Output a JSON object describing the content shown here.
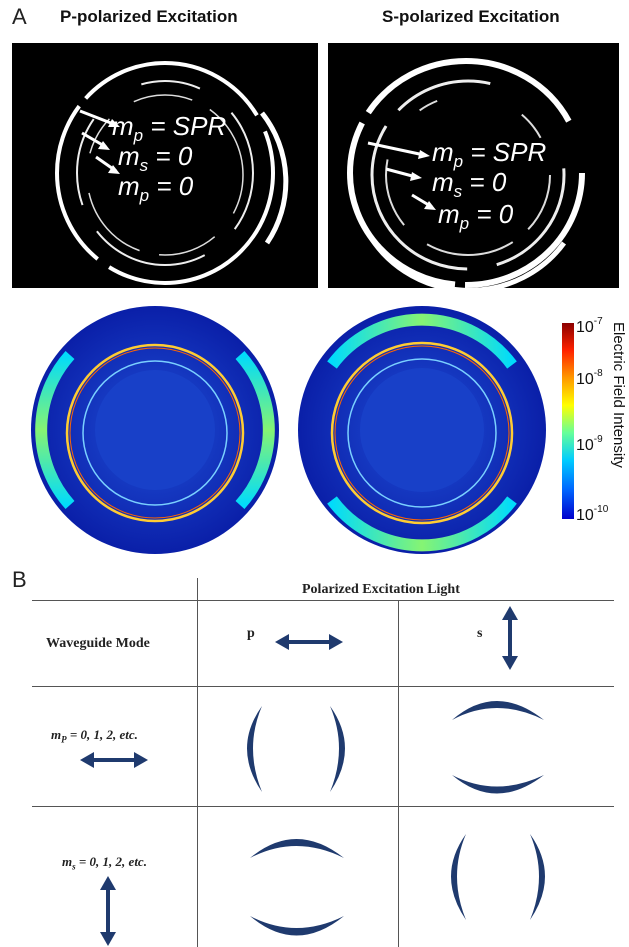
{
  "panel_a": {
    "letter": "A",
    "left_title": "P-polarized Excitation",
    "right_title": "S-polarized Excitation",
    "mode_labels": [
      {
        "symbol": "m",
        "sub": "p",
        "eq": "=",
        "value": "SPR"
      },
      {
        "symbol": "m",
        "sub": "s",
        "eq": "=",
        "value": "0"
      },
      {
        "symbol": "m",
        "sub": "p",
        "eq": "=",
        "value": "0"
      }
    ],
    "colorbar": {
      "title": "Electric Field Intensity",
      "ticks": [
        {
          "base": "10",
          "exp": "-7"
        },
        {
          "base": "10",
          "exp": "-8"
        },
        {
          "base": "10",
          "exp": "-9"
        },
        {
          "base": "10",
          "exp": "-10"
        }
      ],
      "colors": [
        "#8b0000",
        "#ff2200",
        "#ff9900",
        "#ffff00",
        "#66ff99",
        "#00ccff",
        "#0066ff",
        "#0000cc"
      ]
    }
  },
  "panel_b": {
    "letter": "B",
    "header": "Polarized Excitation Light",
    "row_header": "Waveguide Mode",
    "col_p": "p",
    "col_s": "s",
    "row1": {
      "symbol": "m",
      "sub": "P",
      "rest": " = 0, 1, 2, etc."
    },
    "row2": {
      "symbol": "m",
      "sub": "s",
      "rest": " = 0, 1, 2, etc."
    },
    "arrow_color": "#1f3a6e"
  }
}
